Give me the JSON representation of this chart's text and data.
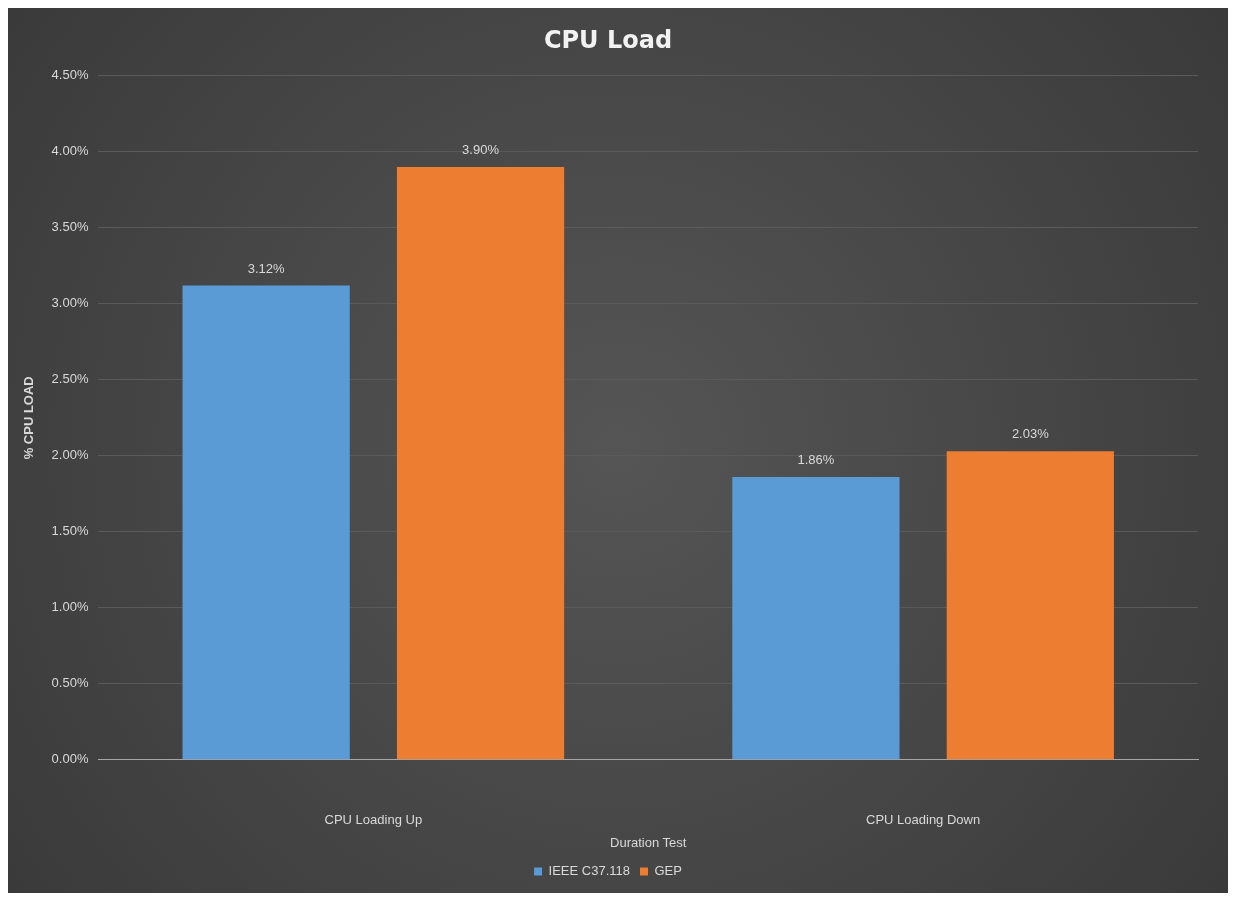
{
  "chart_data": {
    "type": "bar",
    "title": "CPU Load",
    "xlabel": "Duration Test",
    "ylabel": "% CPU LOAD",
    "categories": [
      "CPU Loading Up",
      "CPU Loading Down"
    ],
    "series": [
      {
        "name": "IEEE C37.118",
        "color": "#5b9bd5",
        "values": [
          3.12,
          1.86
        ],
        "value_labels": [
          "3.12%",
          "1.86%"
        ]
      },
      {
        "name": "GEP",
        "color": "#ed7d31",
        "values": [
          3.9,
          2.03
        ],
        "value_labels": [
          "3.90%",
          "2.03%"
        ]
      }
    ],
    "ylim": [
      0,
      4.5
    ],
    "yticks": [
      {
        "value": 0,
        "label": "0.00%"
      },
      {
        "value": 0.5,
        "label": "0.50%"
      },
      {
        "value": 1,
        "label": "1.00%"
      },
      {
        "value": 1.5,
        "label": "1.50%"
      },
      {
        "value": 2,
        "label": "2.00%"
      },
      {
        "value": 2.5,
        "label": "2.50%"
      },
      {
        "value": 3,
        "label": "3.00%"
      },
      {
        "value": 3.5,
        "label": "3.50%"
      },
      {
        "value": 4,
        "label": "4.00%"
      },
      {
        "value": 4.5,
        "label": "4.50%"
      }
    ],
    "grid": "y",
    "legend": "bottom"
  }
}
